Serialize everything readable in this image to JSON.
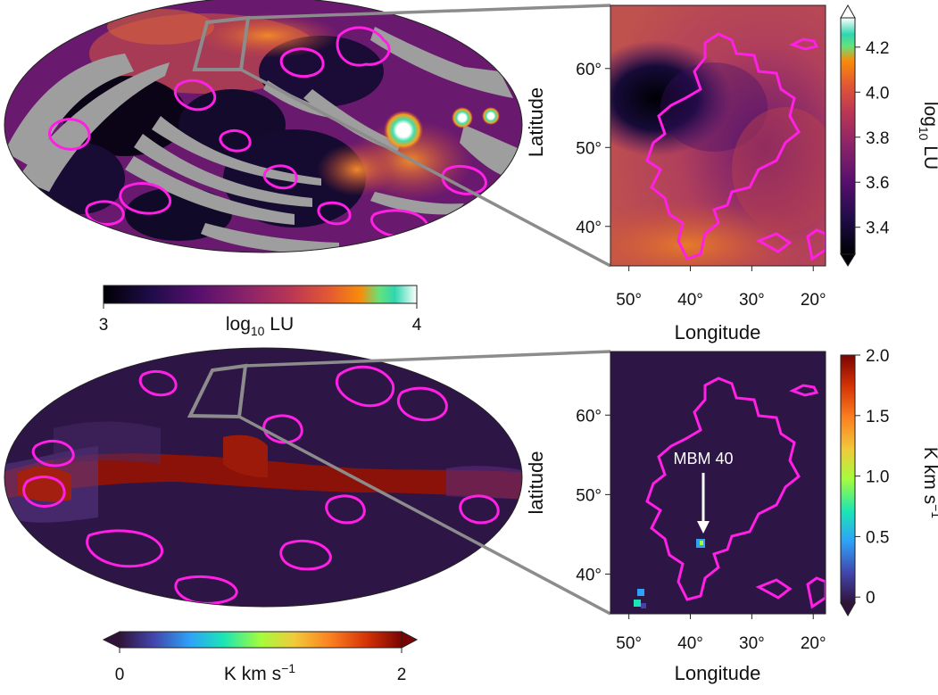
{
  "chart_data": [
    {
      "type": "heatmap",
      "panel": "top-left all-sky map",
      "projection": "mollweide",
      "colormap": "inferno-like",
      "masked_color": "#9e9e9e",
      "contour_color": "#ff1fe5",
      "zoom_box_color": "#8c8c8c",
      "colorbar": {
        "orientation": "horizontal",
        "range": [
          3,
          4
        ],
        "ticks": [
          "3",
          "4"
        ],
        "label": "log",
        "label_sub": "10",
        "label_tail": " LU",
        "extend": "none"
      }
    },
    {
      "type": "heatmap",
      "panel": "top-right zoom",
      "colormap": "inferno-like",
      "xlabel": "Longitude",
      "ylabel": "Latitude",
      "xlim": [
        53,
        18
      ],
      "ylim": [
        35,
        68
      ],
      "x_ticks": [
        "50°",
        "40°",
        "30°",
        "20°"
      ],
      "x_tick_values": [
        50,
        40,
        30,
        20
      ],
      "y_ticks": [
        "40°",
        "50°",
        "60°"
      ],
      "y_tick_values": [
        40,
        50,
        60
      ],
      "colorbar": {
        "orientation": "vertical",
        "range": [
          3.28,
          4.33
        ],
        "ticks": [
          "3.4",
          "3.6",
          "3.8",
          "4.0",
          "4.2"
        ],
        "tick_values": [
          3.4,
          3.6,
          3.8,
          4.0,
          4.2
        ],
        "label": "log",
        "label_sub": "10",
        "label_tail": " LU",
        "extend": "both"
      },
      "intensity_features": [
        {
          "note": "dark minimum",
          "lon": 44,
          "lat": 59.5,
          "value": 3.3
        },
        {
          "note": "bright region",
          "lon": 35,
          "lat": 38,
          "value": 3.8
        }
      ]
    },
    {
      "type": "heatmap",
      "panel": "bottom-left all-sky map",
      "projection": "mollweide",
      "colormap": "turbo-like",
      "contour_color": "#ff1fe5",
      "zoom_box_color": "#8c8c8c",
      "colorbar": {
        "orientation": "horizontal",
        "range": [
          0,
          2
        ],
        "ticks": [
          "0",
          "2"
        ],
        "label": "K km s",
        "label_sup": "−1",
        "extend": "both"
      }
    },
    {
      "type": "heatmap",
      "panel": "bottom-right zoom",
      "colormap": "turbo-like",
      "xlabel": "Longitude",
      "ylabel": "latitude",
      "xlim": [
        53,
        18
      ],
      "ylim": [
        35,
        68
      ],
      "x_ticks": [
        "50°",
        "40°",
        "30°",
        "20°"
      ],
      "x_tick_values": [
        50,
        40,
        30,
        20
      ],
      "y_ticks": [
        "40°",
        "50°",
        "60°"
      ],
      "y_tick_values": [
        40,
        50,
        60
      ],
      "annotation": {
        "text": "MBM 40",
        "lon": 37.5,
        "lat": 45
      },
      "colorbar": {
        "orientation": "vertical",
        "range": [
          -0.05,
          2.0
        ],
        "ticks": [
          "0",
          "0.5",
          "1.0",
          "1.5",
          "2.0"
        ],
        "tick_values": [
          0,
          0.5,
          1.0,
          1.5,
          2.0
        ],
        "label": "K km s",
        "label_sup": "−1",
        "extend": "min"
      }
    }
  ]
}
